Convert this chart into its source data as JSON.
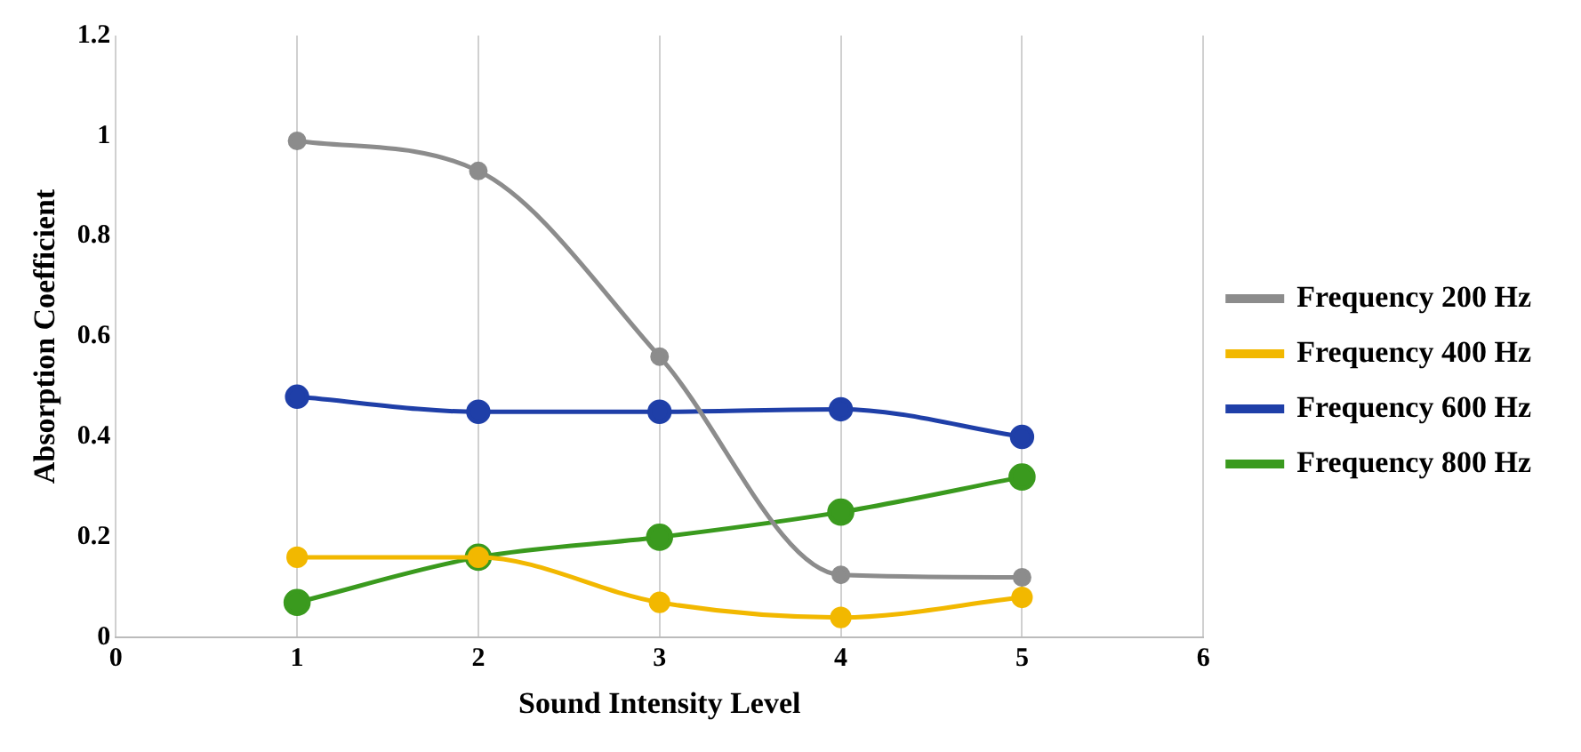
{
  "chart_data": {
    "type": "line",
    "xlabel": "Sound Intensity Level",
    "ylabel": "Absorption Coefficient",
    "x": [
      1,
      2,
      3,
      4,
      5
    ],
    "series": [
      {
        "name": "Frequency 200 Hz",
        "color": "#8c8c8c",
        "values": [
          0.99,
          0.93,
          0.56,
          0.125,
          0.12
        ]
      },
      {
        "name": "Frequency 400 Hz",
        "color": "#f2b800",
        "values": [
          0.16,
          0.16,
          0.07,
          0.04,
          0.08
        ]
      },
      {
        "name": "Frequency 600 Hz",
        "color": "#1f3fa8",
        "values": [
          0.48,
          0.45,
          0.45,
          0.455,
          0.4
        ]
      },
      {
        "name": "Frequency 800 Hz",
        "color": "#3a9a1e",
        "values": [
          0.07,
          0.16,
          0.2,
          0.25,
          0.32
        ]
      }
    ],
    "xlim": [
      0,
      6
    ],
    "xticks": [
      0,
      1,
      2,
      3,
      4,
      5,
      6
    ],
    "ylim": [
      0,
      1.2
    ],
    "yticks": [
      0,
      0.2,
      0.4,
      0.6,
      0.8,
      1,
      1.2
    ],
    "grid": "x",
    "legend": "right",
    "marker": "circle",
    "line_style": "solid"
  }
}
